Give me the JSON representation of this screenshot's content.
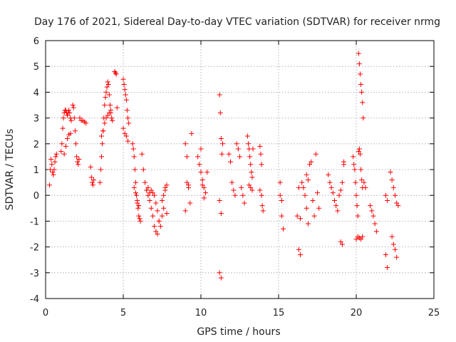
{
  "chart_data": {
    "type": "scatter",
    "title": "Day 176 of 2021, Sidereal Day-to-day VTEC variation (SDTVAR) for receiver nrmg",
    "xlabel": "GPS time / hours",
    "ylabel": "SDTVAR / TECUs",
    "xlim": [
      0,
      25
    ],
    "ylim": [
      -4,
      6
    ],
    "xticks": [
      "0",
      "5",
      "10",
      "15",
      "20",
      "25"
    ],
    "yticks": [
      "-4",
      "-3",
      "-2",
      "-1",
      "0",
      "1",
      "2",
      "3",
      "4",
      "5",
      "6"
    ],
    "grid": true,
    "marker": "plus",
    "color": "#ff0000",
    "series": [
      {
        "name": "SDTVAR",
        "x": [
          0.25,
          0.3,
          0.35,
          0.4,
          0.45,
          0.5,
          0.55,
          0.6,
          0.65,
          0.7,
          1.0,
          1.05,
          1.1,
          1.15,
          1.2,
          1.25,
          1.3,
          1.35,
          1.4,
          1.45,
          1.5,
          1.55,
          1.6,
          1.65,
          1.2,
          1.3,
          1.4,
          1.5,
          1.6,
          1.75,
          1.8,
          1.85,
          1.9,
          1.95,
          2.0,
          2.05,
          2.1,
          2.15,
          2.2,
          2.3,
          2.4,
          2.5,
          2.6,
          2.9,
          2.95,
          3.0,
          3.05,
          3.1,
          3.5,
          3.55,
          3.6,
          3.65,
          3.7,
          3.75,
          3.8,
          3.85,
          3.9,
          3.95,
          4.0,
          4.05,
          4.1,
          4.15,
          4.2,
          4.25,
          4.3,
          3.6,
          3.7,
          3.8,
          3.9,
          4.0,
          4.1,
          4.2,
          4.45,
          4.5,
          4.55,
          4.6,
          5.0,
          5.05,
          5.1,
          5.15,
          5.2,
          5.25,
          5.3,
          5.35,
          5.0,
          5.1,
          5.2,
          5.3,
          5.6,
          5.65,
          5.7,
          5.75,
          5.8,
          5.85,
          5.9,
          5.95,
          6.0,
          6.05,
          6.1,
          5.7,
          5.8,
          5.9,
          6.0,
          6.2,
          6.3,
          6.4,
          6.5,
          6.6,
          6.7,
          6.8,
          6.9,
          7.0,
          7.1,
          7.2,
          7.3,
          6.5,
          6.6,
          6.7,
          6.8,
          6.9,
          7.0,
          7.1,
          7.2,
          7.3,
          7.4,
          7.5,
          7.6,
          7.7,
          7.8,
          7.5,
          7.6,
          7.7,
          7.8,
          9.0,
          9.1,
          9.2,
          9.3,
          9.4,
          9.0,
          9.1,
          9.2,
          9.8,
          9.9,
          10.0,
          10.1,
          10.2,
          10.3,
          10.4,
          10.0,
          10.1,
          10.2,
          11.2,
          11.25,
          11.3,
          11.35,
          11.4,
          11.2,
          11.3,
          11.2,
          11.3,
          11.8,
          11.9,
          12.0,
          12.1,
          12.2,
          12.3,
          12.4,
          12.5,
          12.6,
          12.7,
          12.8,
          13.0,
          13.05,
          13.1,
          13.15,
          13.2,
          13.25,
          13.3,
          13.35,
          13.1,
          13.2,
          13.3,
          13.8,
          13.85,
          13.9,
          13.95,
          14.0,
          13.8,
          13.9,
          15.1,
          15.2,
          15.3,
          15.1,
          15.2,
          16.2,
          16.3,
          16.4,
          16.5,
          16.6,
          16.7,
          16.8,
          16.9,
          16.3,
          16.4,
          16.8,
          16.9,
          17.0,
          17.1,
          17.2,
          17.3,
          17.4,
          17.5,
          17.6,
          18.2,
          18.3,
          18.4,
          18.5,
          18.6,
          18.7,
          18.8,
          18.9,
          19.0,
          19.1,
          19.2,
          19.0,
          19.1,
          19.2,
          19.8,
          19.85,
          19.9,
          19.95,
          20.0,
          20.05,
          20.1,
          20.15,
          20.2,
          20.25,
          20.3,
          20.35,
          20.4,
          20.15,
          20.2,
          20.25,
          20.3,
          20.35,
          20.4,
          20.45,
          20.0,
          20.1,
          20.2,
          20.3,
          20.4,
          20.5,
          20.6,
          20.9,
          21.0,
          21.1,
          21.2,
          21.3,
          21.9,
          22.0,
          21.9,
          22.0,
          22.2,
          22.3,
          22.4,
          22.5,
          22.6,
          22.7,
          22.3,
          22.4,
          22.5,
          22.6
        ],
        "y": [
          0.4,
          1.0,
          1.4,
          1.2,
          0.9,
          0.8,
          1.0,
          1.3,
          1.5,
          1.6,
          1.7,
          2.0,
          2.6,
          3.0,
          3.2,
          3.3,
          3.3,
          3.2,
          3.1,
          3.2,
          3.3,
          3.2,
          3.0,
          2.9,
          1.6,
          1.9,
          2.2,
          2.35,
          2.4,
          3.5,
          3.4,
          3.0,
          2.5,
          2.0,
          1.5,
          1.3,
          1.2,
          1.4,
          3.0,
          2.9,
          2.9,
          2.85,
          2.8,
          1.1,
          0.7,
          0.5,
          0.4,
          0.6,
          0.5,
          1.0,
          1.5,
          2.0,
          2.5,
          3.0,
          3.5,
          3.8,
          4.0,
          4.2,
          4.4,
          4.3,
          3.9,
          3.5,
          3.2,
          3.0,
          2.9,
          2.3,
          2.5,
          2.8,
          3.0,
          3.1,
          3.2,
          3.3,
          4.8,
          4.75,
          4.7,
          3.4,
          4.5,
          4.3,
          4.1,
          3.9,
          3.7,
          3.3,
          3.0,
          2.8,
          2.6,
          2.4,
          2.3,
          2.1,
          2.0,
          1.8,
          1.5,
          1.0,
          0.5,
          0.0,
          -0.3,
          -0.5,
          -0.8,
          -0.9,
          -1.0,
          0.3,
          0.1,
          -0.2,
          -0.4,
          1.6,
          1.0,
          0.5,
          0.2,
          0.0,
          -0.2,
          -0.5,
          -0.8,
          -1.2,
          -1.4,
          -1.5,
          -1.0,
          0.2,
          0.3,
          0.1,
          0.2,
          0.1,
          0.0,
          -0.3,
          -0.6,
          -1.0,
          -1.2,
          -0.8,
          -0.5,
          0.3,
          0.4,
          -0.2,
          0.0,
          0.2,
          -0.7,
          2.0,
          1.5,
          0.4,
          -0.3,
          2.4,
          -0.6,
          0.5,
          0.3,
          1.5,
          1.2,
          0.9,
          0.6,
          0.3,
          0.1,
          0.9,
          1.8,
          0.4,
          -0.1,
          3.9,
          3.2,
          2.2,
          1.6,
          2.0,
          -0.2,
          -0.7,
          -3.0,
          -3.2,
          1.6,
          1.3,
          0.5,
          0.2,
          0.0,
          2.0,
          1.8,
          1.5,
          0.3,
          0.0,
          -0.3,
          2.3,
          2.0,
          1.8,
          1.5,
          1.2,
          0.9,
          0.7,
          1.8,
          0.4,
          0.3,
          0.2,
          1.9,
          1.6,
          0.0,
          -0.4,
          -0.6,
          0.2,
          1.2,
          0.5,
          -0.2,
          -1.3,
          0.0,
          -0.8,
          -0.8,
          -2.1,
          -2.3,
          0.5,
          0.3,
          0.0,
          -0.5,
          -1.1,
          0.3,
          -0.9,
          0.8,
          0.6,
          1.2,
          1.3,
          -0.2,
          -0.8,
          1.6,
          0.1,
          -0.5,
          0.8,
          0.5,
          0.3,
          0.1,
          -0.2,
          -0.4,
          -0.6,
          0.0,
          0.2,
          0.5,
          1.3,
          -1.8,
          -1.9,
          1.2,
          1.5,
          1.2,
          1.0,
          0.5,
          0.0,
          -0.4,
          -0.8,
          1.7,
          1.8,
          1.6,
          1.0,
          0.6,
          0.3,
          5.5,
          5.1,
          4.7,
          4.3,
          4.0,
          3.6,
          3.0,
          -1.7,
          -1.6,
          -1.65,
          -1.7,
          -1.6,
          0.5,
          0.3,
          -0.4,
          -0.6,
          -0.8,
          -1.1,
          -1.4,
          -2.3,
          -2.8,
          0.0,
          -0.2,
          0.9,
          0.6,
          0.3,
          0.0,
          -0.3,
          -0.4,
          -1.6,
          -1.9,
          -2.1,
          -2.4
        ]
      }
    ]
  }
}
